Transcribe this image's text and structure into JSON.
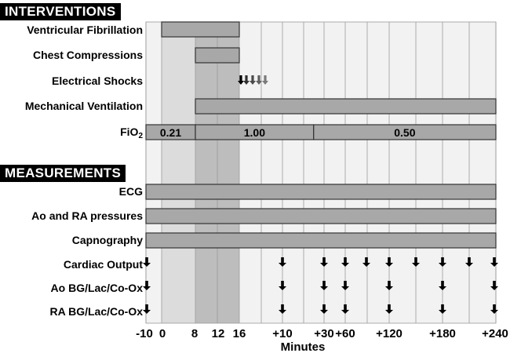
{
  "sections": {
    "interventions": "INTERVENTIONS",
    "measurements": "MEASUREMENTS"
  },
  "interventions": [
    {
      "id": "vf",
      "label": "Ventricular Fibrillation",
      "start": 0,
      "end": 16
    },
    {
      "id": "cc",
      "label": "Chest Compressions",
      "start": 8,
      "end": 16
    },
    {
      "id": "es",
      "label": "Electrical Shocks",
      "shocks": [
        16,
        17,
        18,
        19,
        20
      ]
    },
    {
      "id": "mv",
      "label": "Mechanical Ventilation",
      "start": 8,
      "end": 240
    }
  ],
  "fio2": {
    "label_main": "FiO",
    "label_sub": "2",
    "segments": [
      {
        "value": "0.21",
        "start": -10,
        "end": 8
      },
      {
        "value": "1.00",
        "start": 8,
        "end": 25
      },
      {
        "value": "0.50",
        "start": 25,
        "end": 240
      }
    ]
  },
  "measurements": [
    {
      "id": "ecg",
      "label": "ECG",
      "start": -10,
      "end": 240
    },
    {
      "id": "aora",
      "label": "Ao and RA pressures",
      "start": -10,
      "end": 240
    },
    {
      "id": "cap",
      "label": "Capnography",
      "start": -10,
      "end": 240
    }
  ],
  "samples": [
    {
      "id": "co",
      "label": "Cardiac Output",
      "times": [
        -10,
        10,
        30,
        60,
        90,
        120,
        150,
        180,
        210,
        240
      ]
    },
    {
      "id": "ao",
      "label": "Ao BG/Lac/Co-Ox",
      "times": [
        -10,
        10,
        30,
        60,
        120,
        180,
        240
      ]
    },
    {
      "id": "ra",
      "label": "RA BG/Lac/Co-Ox",
      "times": [
        -10,
        10,
        30,
        60,
        120,
        180,
        240
      ]
    }
  ],
  "axis": {
    "title": "Minutes",
    "ticks": [
      "-10",
      "0",
      "8",
      "12",
      "16",
      "+10",
      "+30",
      "+60",
      "+120",
      "+180",
      "+240"
    ],
    "tick_values": [
      -10,
      0,
      8,
      12,
      16,
      26,
      46,
      76,
      136,
      196,
      256
    ]
  },
  "colors": {
    "bar": "#a8a8a8",
    "zone_light": "#dcdcdc",
    "zone_dark": "#bdbdbd",
    "grid_bg": "#f2f2f2",
    "arrow": "#000000",
    "arrow_gray": "#7a7a7a"
  }
}
